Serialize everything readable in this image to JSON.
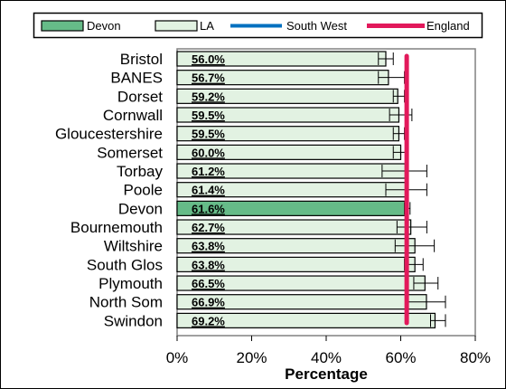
{
  "chart_data": {
    "type": "bar",
    "orientation": "horizontal",
    "categories": [
      "Bristol",
      "BANES",
      "Dorset",
      "Cornwall",
      "Gloucestershire",
      "Somerset",
      "Torbay",
      "Poole",
      "Devon",
      "Bournemouth",
      "Wiltshire",
      "South Glos",
      "Plymouth",
      "North Som",
      "Swindon"
    ],
    "values": [
      56.0,
      56.7,
      59.2,
      59.5,
      59.5,
      60.0,
      61.2,
      61.4,
      61.6,
      62.7,
      63.8,
      63.8,
      66.5,
      66.9,
      69.2
    ],
    "value_labels": [
      "56.0%",
      "56.7%",
      "59.2%",
      "59.5%",
      "59.5%",
      "60.0%",
      "61.2%",
      "61.4%",
      "61.6%",
      "62.7%",
      "63.8%",
      "63.8%",
      "66.5%",
      "66.9%",
      "69.2%"
    ],
    "error_bars": [
      {
        "low": 54.0,
        "high": 58.0
      },
      {
        "low": 54.0,
        "high": 61.0
      },
      {
        "low": 58.0,
        "high": 61.0
      },
      {
        "low": 57.0,
        "high": 63.0
      },
      {
        "low": 58.0,
        "high": 61.0
      },
      {
        "low": 58.0,
        "high": 62.0
      },
      {
        "low": 55.0,
        "high": 67.0
      },
      {
        "low": 56.0,
        "high": 67.0
      },
      {
        "low": 61.0,
        "high": 62.5
      },
      {
        "low": 59.0,
        "high": 67.0
      },
      {
        "low": 58.5,
        "high": 69.0
      },
      {
        "low": 61.0,
        "high": 66.0
      },
      {
        "low": 63.5,
        "high": 70.0
      },
      {
        "low": 62.0,
        "high": 72.0
      },
      {
        "low": 68.0,
        "high": 72.0
      }
    ],
    "highlight_category": "Devon",
    "reference_lines": [
      {
        "name": "South West",
        "value": 61.6,
        "color": "#0070C0"
      },
      {
        "name": "England",
        "value": 61.6,
        "color": "#E2195B"
      }
    ],
    "legend": [
      {
        "name": "Devon",
        "kind": "bar",
        "color": "#66BB88"
      },
      {
        "name": "LA",
        "kind": "bar",
        "color": "#E2F2E2"
      },
      {
        "name": "South West",
        "kind": "line",
        "color": "#0070C0"
      },
      {
        "name": "England",
        "kind": "line",
        "color": "#E2195B"
      }
    ],
    "legend_position": "top",
    "xlabel": "Percentage",
    "ylabel": "",
    "xlim": [
      0,
      80
    ],
    "x_ticks": [
      0,
      20,
      40,
      60,
      80
    ],
    "x_tick_labels": [
      "0%",
      "20%",
      "40%",
      "60%",
      "80%"
    ],
    "grid": false,
    "colors": {
      "bar_fill": "#E2F2E2",
      "highlight_fill": "#66BB88",
      "bar_stroke": "#000000"
    }
  }
}
